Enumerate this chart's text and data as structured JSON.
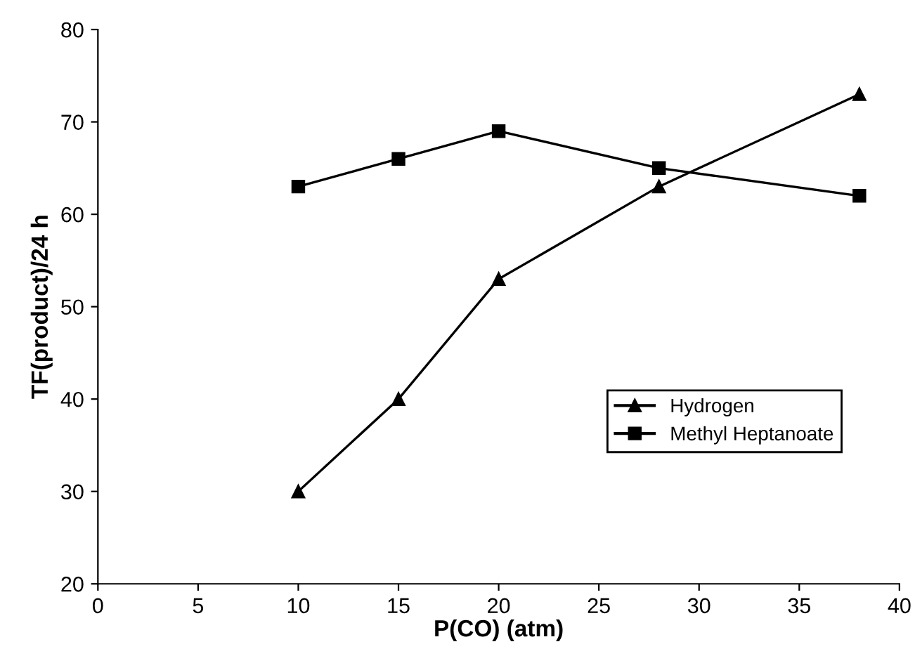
{
  "chart_data": {
    "type": "line",
    "xlabel": "P(CO) (atm)",
    "ylabel": "TF(product)/24 h",
    "x": [
      10,
      15,
      20,
      28,
      38
    ],
    "series": [
      {
        "name": "Hydrogen",
        "color": "#000000",
        "marker": "triangle",
        "values": [
          30,
          40,
          53,
          63,
          73
        ]
      },
      {
        "name": "Methyl Heptanoate",
        "color": "#000000",
        "marker": "square",
        "values": [
          63,
          66,
          69,
          65,
          62
        ]
      }
    ],
    "xlim": [
      0,
      40
    ],
    "xticks": [
      0,
      5,
      10,
      15,
      20,
      25,
      30,
      35,
      40
    ],
    "ylim": [
      20,
      80
    ],
    "yticks": [
      20,
      30,
      40,
      50,
      60,
      70,
      80
    ],
    "grid": false,
    "legend": "lower right",
    "line_style": "solid"
  }
}
